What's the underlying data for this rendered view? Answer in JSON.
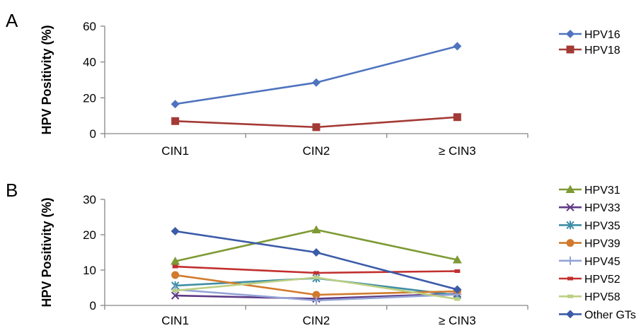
{
  "chart_data": [
    {
      "type": "line",
      "panel_label": "A",
      "categories": [
        "CIN1",
        "CIN2",
        "≥ CIN3"
      ],
      "ylabel": "HPV Positivity (%)",
      "ylim": [
        0,
        60
      ],
      "yticks": [
        "0",
        "20",
        "40",
        "60"
      ],
      "grid": false,
      "legend": "right",
      "series": [
        {
          "name": "HPV16",
          "values": [
            16.5,
            28.5,
            48.8
          ],
          "color": "#4f73be",
          "marker": "diamond"
        },
        {
          "name": "HPV18",
          "values": [
            7.0,
            3.6,
            9.2
          ],
          "color": "#a33a35",
          "marker": "square"
        }
      ]
    },
    {
      "type": "line",
      "panel_label": "B",
      "categories": [
        "CIN1",
        "CIN2",
        "≥ CIN3"
      ],
      "ylabel": "HPV Positivity (%)",
      "ylim": [
        0,
        30
      ],
      "yticks": [
        "0",
        "10",
        "20",
        "30"
      ],
      "grid": false,
      "legend": "right",
      "series": [
        {
          "name": "HPV31",
          "values": [
            12.5,
            21.4,
            12.9
          ],
          "color": "#7e9a34",
          "marker": "triangle"
        },
        {
          "name": "HPV33",
          "values": [
            2.8,
            1.9,
            3.3
          ],
          "color": "#5e3a87",
          "marker": "x"
        },
        {
          "name": "HPV35",
          "values": [
            5.6,
            7.7,
            2.9
          ],
          "color": "#3f8ea6",
          "marker": "asterisk"
        },
        {
          "name": "HPV39",
          "values": [
            8.6,
            3.0,
            4.0
          ],
          "color": "#d17a2d",
          "marker": "circle"
        },
        {
          "name": "HPV45",
          "values": [
            4.5,
            1.4,
            3.1
          ],
          "color": "#93a3d6",
          "marker": "plus"
        },
        {
          "name": "HPV52",
          "values": [
            11.0,
            9.2,
            9.7
          ],
          "color": "#c1302f",
          "marker": "dash"
        },
        {
          "name": "HPV58",
          "values": [
            4.2,
            7.9,
            1.8
          ],
          "color": "#bccf82",
          "marker": "dash"
        },
        {
          "name": "Other GTs",
          "values": [
            21.0,
            15.0,
            4.5
          ],
          "color": "#3c5ba8",
          "marker": "diamond"
        }
      ]
    }
  ]
}
